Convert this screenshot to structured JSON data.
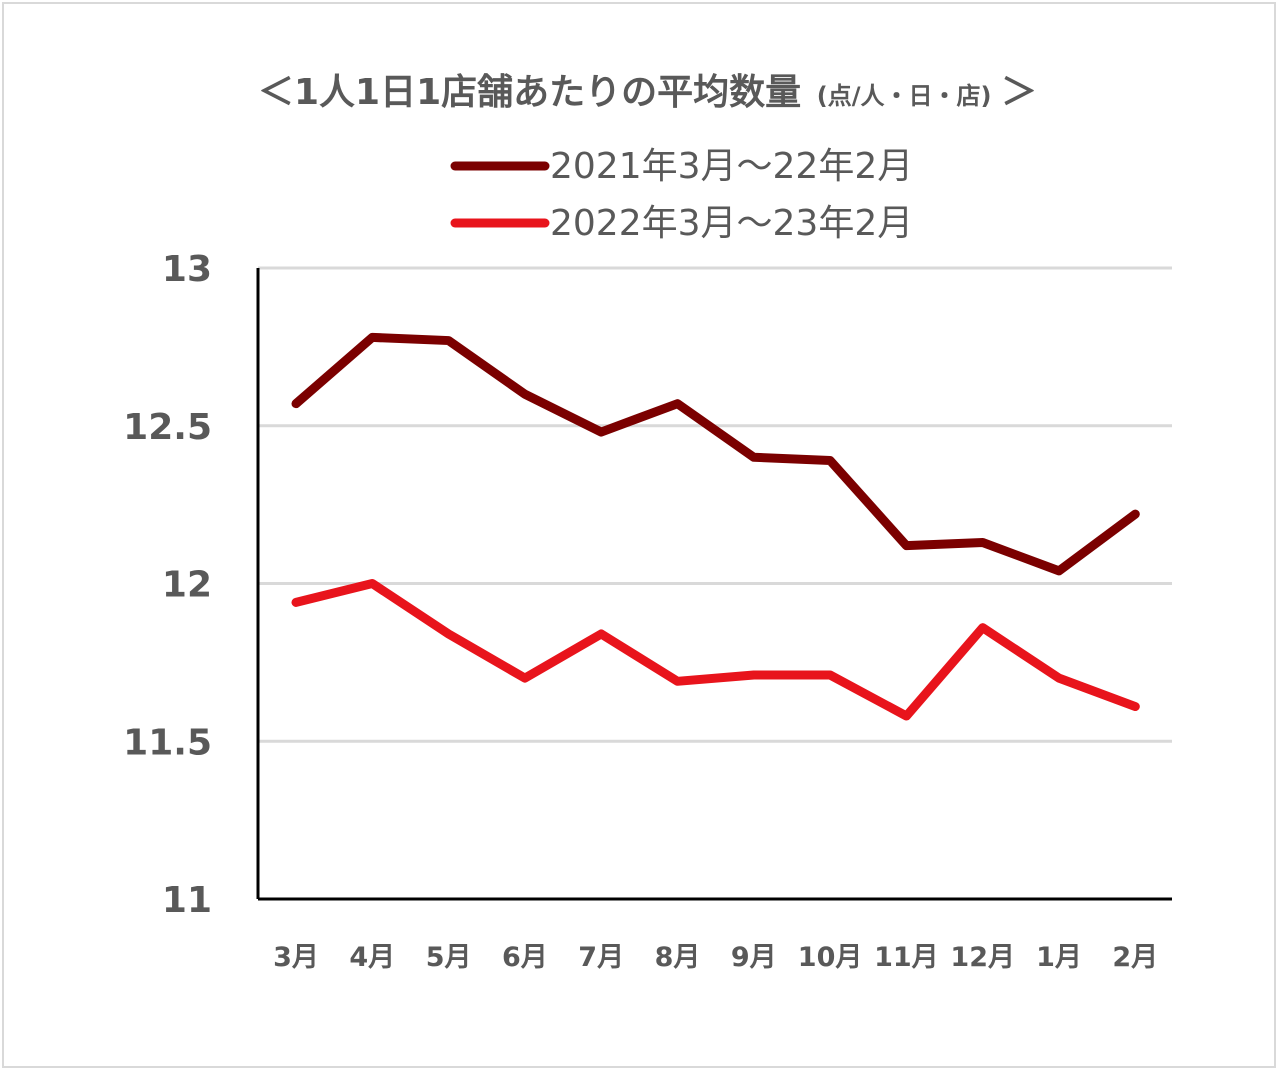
{
  "chart_data": {
    "type": "line",
    "title": "＜1人1日1店舗あたりの平均数量",
    "title_unit": "(点/人・日・店)",
    "title_close": "＞",
    "categories": [
      "3月",
      "4月",
      "5月",
      "6月",
      "7月",
      "8月",
      "9月",
      "10月",
      "11月",
      "12月",
      "1月",
      "2月"
    ],
    "series": [
      {
        "name": "2021年3月～22年2月",
        "color": "#7b0000",
        "values": [
          12.57,
          12.78,
          12.77,
          12.6,
          12.48,
          12.57,
          12.4,
          12.39,
          12.12,
          12.13,
          12.04,
          12.22
        ]
      },
      {
        "name": "2022年3月～23年2月",
        "color": "#e8141c",
        "values": [
          11.94,
          12.0,
          11.84,
          11.7,
          11.84,
          11.69,
          11.71,
          11.71,
          11.58,
          11.86,
          11.7,
          11.61
        ]
      }
    ],
    "ylim": [
      11,
      13
    ],
    "yticks": [
      "13",
      "12.5",
      "12",
      "11.5",
      "11"
    ],
    "xlabel": "",
    "ylabel": "",
    "grid": true,
    "legend_position": "top"
  }
}
